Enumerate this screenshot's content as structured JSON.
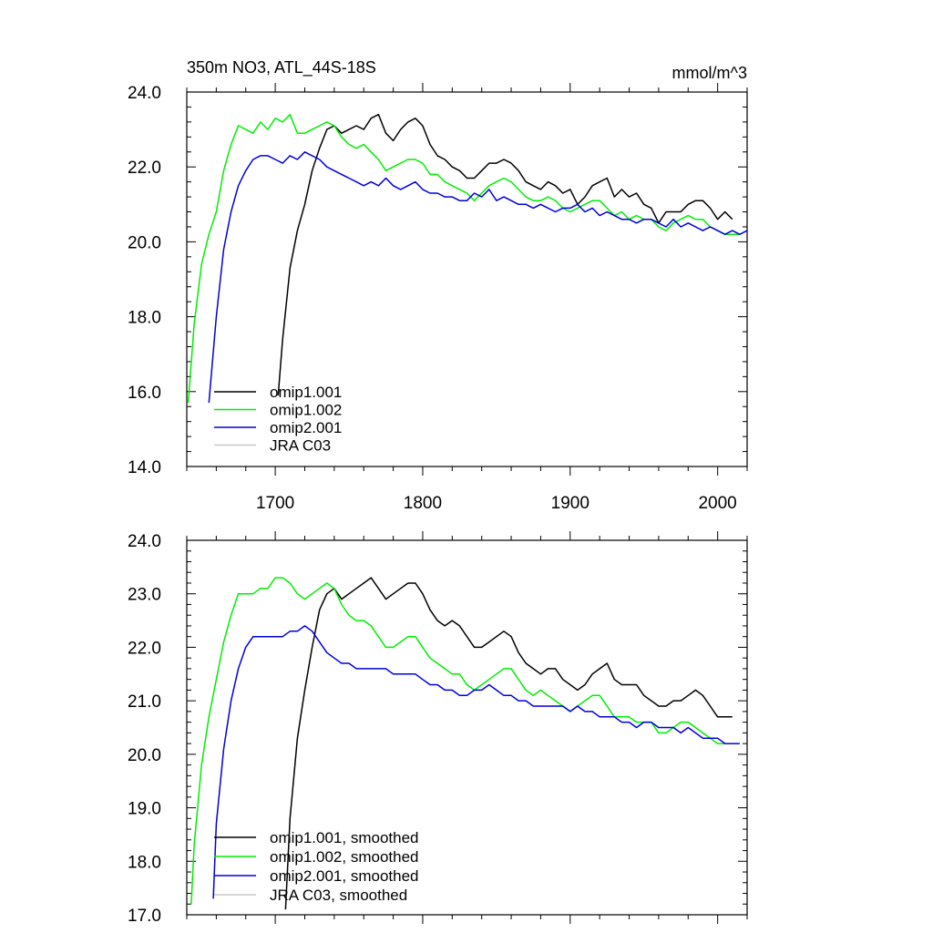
{
  "chart_data": [
    {
      "type": "line",
      "title": "350m NO3, ATL_44S-18S",
      "units": "mmol/m^3",
      "xlabel": "",
      "ylabel": "",
      "xlim": [
        1640,
        2020
      ],
      "ylim": [
        14.0,
        24.0
      ],
      "x_ticks": [
        1700,
        1800,
        1900,
        2000
      ],
      "x_tick_labels": [
        "1700",
        "1800",
        "1900",
        "2000"
      ],
      "y_ticks": [
        14.0,
        16.0,
        18.0,
        20.0,
        22.0,
        24.0
      ],
      "y_tick_labels": [
        "14.0",
        "16.0",
        "18.0",
        "20.0",
        "22.0",
        "24.0"
      ],
      "legend_position": "bottom-left",
      "series": [
        {
          "name": "omip1.001",
          "color": "#000000",
          "x": [
            1702,
            1705,
            1710,
            1715,
            1720,
            1725,
            1730,
            1735,
            1740,
            1745,
            1750,
            1755,
            1760,
            1765,
            1770,
            1775,
            1780,
            1785,
            1790,
            1795,
            1800,
            1805,
            1810,
            1815,
            1820,
            1825,
            1830,
            1835,
            1840,
            1845,
            1850,
            1855,
            1860,
            1865,
            1870,
            1875,
            1880,
            1885,
            1890,
            1895,
            1900,
            1905,
            1910,
            1915,
            1920,
            1925,
            1930,
            1935,
            1940,
            1945,
            1950,
            1955,
            1960,
            1965,
            1970,
            1975,
            1980,
            1985,
            1990,
            1995,
            2000,
            2005,
            2010
          ],
          "y": [
            15.9,
            17.4,
            19.3,
            20.3,
            21.0,
            21.9,
            22.5,
            23.0,
            23.1,
            22.9,
            23.0,
            23.1,
            23.0,
            23.3,
            23.4,
            22.9,
            22.7,
            23.0,
            23.2,
            23.3,
            23.1,
            22.6,
            22.3,
            22.2,
            22.0,
            21.9,
            21.7,
            21.7,
            21.9,
            22.1,
            22.1,
            22.2,
            22.1,
            21.9,
            21.6,
            21.5,
            21.4,
            21.6,
            21.5,
            21.3,
            21.4,
            21.0,
            21.2,
            21.5,
            21.6,
            21.7,
            21.2,
            21.4,
            21.2,
            21.3,
            21.0,
            20.9,
            20.5,
            20.8,
            20.8,
            20.8,
            21.0,
            21.1,
            21.1,
            20.9,
            20.6,
            20.8,
            20.6
          ]
        },
        {
          "name": "omip1.002",
          "color": "#00ee00",
          "x": [
            1641,
            1645,
            1650,
            1655,
            1660,
            1665,
            1670,
            1675,
            1680,
            1685,
            1690,
            1695,
            1700,
            1705,
            1710,
            1715,
            1720,
            1725,
            1730,
            1735,
            1740,
            1745,
            1750,
            1755,
            1760,
            1765,
            1770,
            1775,
            1780,
            1785,
            1790,
            1795,
            1800,
            1805,
            1810,
            1815,
            1820,
            1825,
            1830,
            1835,
            1840,
            1845,
            1850,
            1855,
            1860,
            1865,
            1870,
            1875,
            1880,
            1885,
            1890,
            1895,
            1900,
            1905,
            1910,
            1915,
            1920,
            1925,
            1930,
            1935,
            1940,
            1945,
            1950,
            1955,
            1960,
            1965,
            1970,
            1975,
            1980,
            1985,
            1990,
            1995,
            2000,
            2005,
            2010,
            2015
          ],
          "y": [
            15.7,
            17.8,
            19.4,
            20.2,
            20.8,
            21.9,
            22.6,
            23.1,
            23.0,
            22.9,
            23.2,
            23.0,
            23.3,
            23.2,
            23.4,
            22.9,
            22.9,
            23.0,
            23.1,
            23.2,
            23.1,
            22.8,
            22.6,
            22.5,
            22.6,
            22.4,
            22.2,
            21.9,
            22.0,
            22.1,
            22.2,
            22.2,
            22.1,
            21.8,
            21.8,
            21.6,
            21.5,
            21.4,
            21.3,
            21.1,
            21.3,
            21.5,
            21.6,
            21.7,
            21.6,
            21.4,
            21.2,
            21.1,
            21.1,
            21.2,
            21.1,
            20.9,
            20.8,
            20.9,
            21.0,
            21.1,
            21.1,
            20.9,
            20.7,
            20.8,
            20.6,
            20.7,
            20.6,
            20.6,
            20.4,
            20.3,
            20.5,
            20.6,
            20.7,
            20.6,
            20.6,
            20.4,
            20.3,
            20.2,
            20.2,
            20.2
          ]
        },
        {
          "name": "omip2.001",
          "color": "#0000dd",
          "x": [
            1655,
            1660,
            1665,
            1670,
            1675,
            1680,
            1685,
            1690,
            1695,
            1700,
            1705,
            1710,
            1715,
            1720,
            1725,
            1730,
            1735,
            1740,
            1745,
            1750,
            1755,
            1760,
            1765,
            1770,
            1775,
            1780,
            1785,
            1790,
            1795,
            1800,
            1805,
            1810,
            1815,
            1820,
            1825,
            1830,
            1835,
            1840,
            1845,
            1850,
            1855,
            1860,
            1865,
            1870,
            1875,
            1880,
            1885,
            1890,
            1895,
            1900,
            1905,
            1910,
            1915,
            1920,
            1925,
            1930,
            1935,
            1940,
            1945,
            1950,
            1955,
            1960,
            1965,
            1970,
            1975,
            1980,
            1985,
            1990,
            1995,
            2000,
            2005,
            2010,
            2015,
            2020
          ],
          "y": [
            15.7,
            18.0,
            19.8,
            20.8,
            21.5,
            21.9,
            22.2,
            22.3,
            22.3,
            22.2,
            22.1,
            22.3,
            22.2,
            22.4,
            22.3,
            22.2,
            22.0,
            21.9,
            21.8,
            21.7,
            21.6,
            21.5,
            21.6,
            21.5,
            21.7,
            21.5,
            21.4,
            21.5,
            21.6,
            21.4,
            21.3,
            21.3,
            21.2,
            21.2,
            21.1,
            21.1,
            21.3,
            21.2,
            21.4,
            21.1,
            21.2,
            21.1,
            21.0,
            21.0,
            20.9,
            21.0,
            20.9,
            20.8,
            20.9,
            20.9,
            21.0,
            20.8,
            20.9,
            20.7,
            20.8,
            20.7,
            20.6,
            20.6,
            20.5,
            20.6,
            20.6,
            20.5,
            20.4,
            20.6,
            20.4,
            20.5,
            20.4,
            20.3,
            20.4,
            20.3,
            20.2,
            20.3,
            20.2,
            20.3
          ]
        },
        {
          "name": "JRA C03",
          "color": "#c8c8c8",
          "x": [],
          "y": []
        }
      ]
    },
    {
      "type": "line",
      "title": "",
      "xlabel": "",
      "ylabel": "",
      "xlim": [
        1640,
        2020
      ],
      "ylim": [
        17.0,
        24.0
      ],
      "x_ticks": [
        1700,
        1800,
        1900,
        2000
      ],
      "x_tick_labels": [],
      "y_ticks": [
        17.0,
        18.0,
        19.0,
        20.0,
        21.0,
        22.0,
        23.0,
        24.0
      ],
      "y_tick_labels": [
        "17.0",
        "18.0",
        "19.0",
        "20.0",
        "21.0",
        "22.0",
        "23.0",
        "24.0"
      ],
      "legend_position": "bottom-left",
      "series": [
        {
          "name": "omip1.001, smoothed",
          "color": "#000000",
          "x": [
            1707,
            1710,
            1715,
            1720,
            1725,
            1730,
            1735,
            1740,
            1745,
            1750,
            1755,
            1760,
            1765,
            1770,
            1775,
            1780,
            1785,
            1790,
            1795,
            1800,
            1805,
            1810,
            1815,
            1820,
            1825,
            1830,
            1835,
            1840,
            1845,
            1850,
            1855,
            1860,
            1865,
            1870,
            1875,
            1880,
            1885,
            1890,
            1895,
            1900,
            1905,
            1910,
            1915,
            1920,
            1925,
            1930,
            1935,
            1940,
            1945,
            1950,
            1955,
            1960,
            1965,
            1970,
            1975,
            1980,
            1985,
            1990,
            1995,
            2000,
            2005,
            2010
          ],
          "y": [
            17.1,
            18.8,
            20.3,
            21.2,
            22.0,
            22.7,
            23.0,
            23.1,
            22.9,
            23.0,
            23.1,
            23.2,
            23.3,
            23.1,
            22.9,
            23.0,
            23.1,
            23.2,
            23.2,
            23.0,
            22.7,
            22.5,
            22.4,
            22.5,
            22.4,
            22.2,
            22.0,
            22.0,
            22.1,
            22.2,
            22.3,
            22.2,
            21.9,
            21.7,
            21.6,
            21.5,
            21.6,
            21.6,
            21.4,
            21.3,
            21.2,
            21.3,
            21.5,
            21.6,
            21.7,
            21.4,
            21.3,
            21.3,
            21.3,
            21.1,
            21.0,
            20.9,
            20.9,
            21.0,
            21.0,
            21.1,
            21.2,
            21.1,
            20.9,
            20.7,
            20.7,
            20.7
          ]
        },
        {
          "name": "omip1.002, smoothed",
          "color": "#00ee00",
          "x": [
            1643,
            1645,
            1650,
            1655,
            1660,
            1665,
            1670,
            1675,
            1680,
            1685,
            1690,
            1695,
            1700,
            1705,
            1710,
            1715,
            1720,
            1725,
            1730,
            1735,
            1740,
            1745,
            1750,
            1755,
            1760,
            1765,
            1770,
            1775,
            1780,
            1785,
            1790,
            1795,
            1800,
            1805,
            1810,
            1815,
            1820,
            1825,
            1830,
            1835,
            1840,
            1845,
            1850,
            1855,
            1860,
            1865,
            1870,
            1875,
            1880,
            1885,
            1890,
            1895,
            1900,
            1905,
            1910,
            1915,
            1920,
            1925,
            1930,
            1935,
            1940,
            1945,
            1950,
            1955,
            1960,
            1965,
            1970,
            1975,
            1980,
            1985,
            1990,
            1995,
            2000,
            2005
          ],
          "y": [
            17.2,
            18.3,
            19.8,
            20.7,
            21.4,
            22.1,
            22.6,
            23.0,
            23.0,
            23.0,
            23.1,
            23.1,
            23.3,
            23.3,
            23.2,
            23.0,
            22.9,
            23.0,
            23.1,
            23.2,
            23.1,
            22.8,
            22.6,
            22.5,
            22.5,
            22.4,
            22.2,
            22.0,
            22.0,
            22.1,
            22.2,
            22.2,
            22.0,
            21.8,
            21.7,
            21.6,
            21.5,
            21.5,
            21.3,
            21.2,
            21.3,
            21.4,
            21.5,
            21.6,
            21.6,
            21.4,
            21.2,
            21.1,
            21.2,
            21.1,
            21.0,
            20.9,
            20.8,
            20.9,
            21.0,
            21.1,
            21.1,
            20.9,
            20.7,
            20.7,
            20.7,
            20.6,
            20.6,
            20.6,
            20.4,
            20.4,
            20.5,
            20.6,
            20.6,
            20.5,
            20.4,
            20.3,
            20.2,
            20.2
          ]
        },
        {
          "name": "omip2.001, smoothed",
          "color": "#0000dd",
          "x": [
            1658,
            1660,
            1665,
            1670,
            1675,
            1680,
            1685,
            1690,
            1695,
            1700,
            1705,
            1710,
            1715,
            1720,
            1725,
            1730,
            1735,
            1740,
            1745,
            1750,
            1755,
            1760,
            1765,
            1770,
            1775,
            1780,
            1785,
            1790,
            1795,
            1800,
            1805,
            1810,
            1815,
            1820,
            1825,
            1830,
            1835,
            1840,
            1845,
            1850,
            1855,
            1860,
            1865,
            1870,
            1875,
            1880,
            1885,
            1890,
            1895,
            1900,
            1905,
            1910,
            1915,
            1920,
            1925,
            1930,
            1935,
            1940,
            1945,
            1950,
            1955,
            1960,
            1965,
            1970,
            1975,
            1980,
            1985,
            1990,
            1995,
            2000,
            2005,
            2010,
            2015
          ],
          "y": [
            17.3,
            18.7,
            20.1,
            21.0,
            21.6,
            22.0,
            22.2,
            22.2,
            22.2,
            22.2,
            22.2,
            22.3,
            22.3,
            22.4,
            22.3,
            22.1,
            21.9,
            21.8,
            21.7,
            21.7,
            21.6,
            21.6,
            21.6,
            21.6,
            21.6,
            21.5,
            21.5,
            21.5,
            21.5,
            21.4,
            21.3,
            21.3,
            21.2,
            21.2,
            21.1,
            21.1,
            21.2,
            21.2,
            21.3,
            21.2,
            21.1,
            21.1,
            21.0,
            21.0,
            20.9,
            20.9,
            20.9,
            20.9,
            20.9,
            20.8,
            20.9,
            20.8,
            20.8,
            20.7,
            20.7,
            20.7,
            20.6,
            20.6,
            20.5,
            20.6,
            20.6,
            20.5,
            20.5,
            20.5,
            20.4,
            20.5,
            20.4,
            20.3,
            20.3,
            20.3,
            20.2,
            20.2,
            20.2
          ]
        },
        {
          "name": "JRA C03, smoothed",
          "color": "#c8c8c8",
          "x": [],
          "y": []
        }
      ]
    }
  ]
}
